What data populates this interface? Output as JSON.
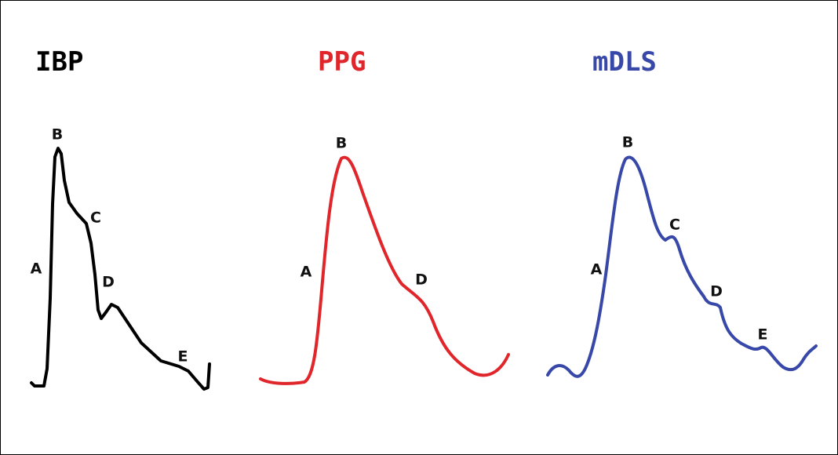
{
  "panels": [
    {
      "title": "IBP",
      "color": "#000000",
      "labels": [
        "A",
        "B",
        "C",
        "D",
        "E"
      ]
    },
    {
      "title": "PPG",
      "color": "#e0262b",
      "labels": [
        "A",
        "B",
        "D"
      ]
    },
    {
      "title": "mDLS",
      "color": "#3848a8",
      "labels": [
        "A",
        "B",
        "C",
        "D",
        "E"
      ]
    }
  ]
}
